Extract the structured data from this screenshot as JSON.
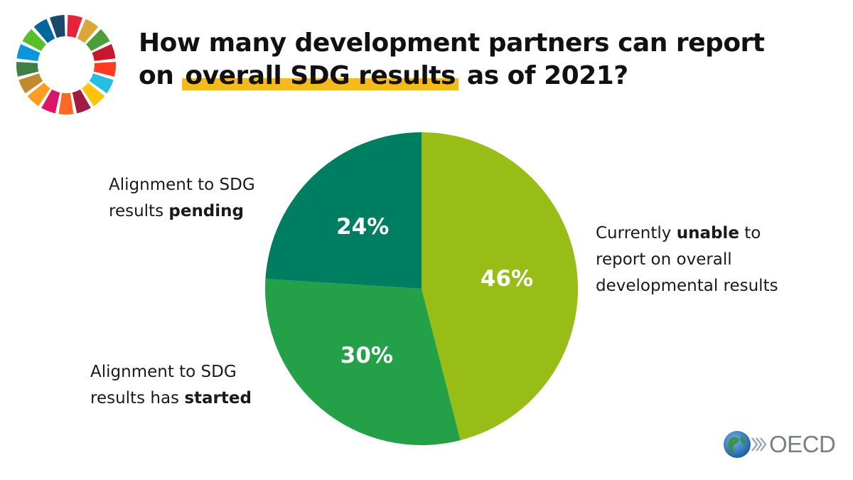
{
  "title": {
    "line1": "How many development partners can report",
    "line2_pre": "on ",
    "line2_highlight": "overall SDG results",
    "line2_post": " as of 2021?"
  },
  "colors": {
    "highlight": "#f6b81c",
    "unable": "#98bd16",
    "started": "#24a148",
    "pending": "#007e62"
  },
  "chart_data": {
    "type": "pie",
    "slices": [
      {
        "key": "unable",
        "value": 46,
        "label": "46%",
        "color": "#98bd16"
      },
      {
        "key": "started",
        "value": 30,
        "label": "30%",
        "color": "#24a148"
      },
      {
        "key": "pending",
        "value": 24,
        "label": "24%",
        "color": "#007e62"
      }
    ]
  },
  "labels": {
    "pending": {
      "pre": "Alignment to SDG results ",
      "bold": "pending",
      "post": ""
    },
    "started": {
      "pre": "Alignment to SDG results has ",
      "bold": "started",
      "post": ""
    },
    "unable": {
      "pre": "Currently ",
      "bold": "unable",
      "post": " to report on overall developmental results"
    }
  },
  "logo": {
    "oecd_text": "OECD",
    "sdg_wheel_icon": "sdg-wheel-icon",
    "oecd_icon": "oecd-globe-icon"
  }
}
